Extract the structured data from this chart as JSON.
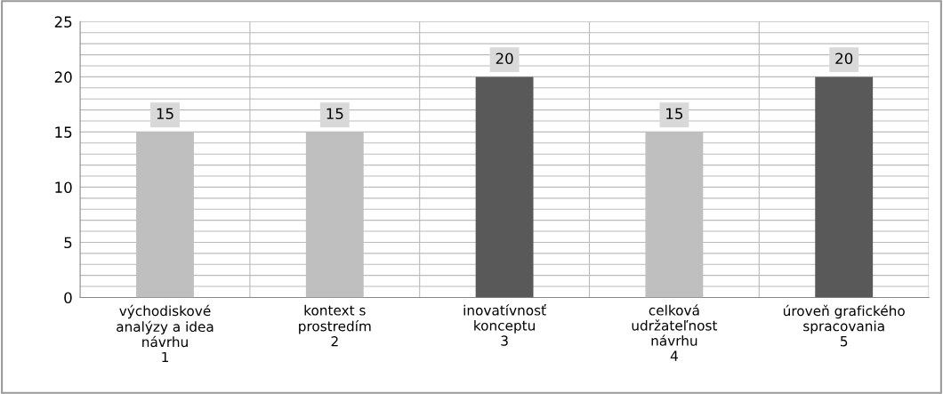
{
  "chart_data": {
    "type": "bar",
    "categories": [
      "východiskové\nanalýzy a idea\nnávrhu\n1",
      "kontext s\nprostredím\n2",
      "inovatívnosť\nkonceptu\n3",
      "celková\nudržateľnost\nnávrhu\n4",
      "úroveň grafického\nspracovania\n5"
    ],
    "values": [
      15,
      15,
      20,
      15,
      20
    ],
    "colors": [
      "#bfbfbf",
      "#bfbfbf",
      "#595959",
      "#bfbfbf",
      "#595959"
    ],
    "ylim": [
      0,
      25
    ],
    "yticks": [
      0,
      {
        "value": 1,
        "label": null
      },
      {
        "value": 2,
        "label": null
      },
      {
        "value": 3,
        "label": null
      },
      {
        "value": 4,
        "label": null
      },
      5,
      {
        "value": 6,
        "label": null
      },
      {
        "value": 7,
        "label": null
      },
      {
        "value": 8,
        "label": null
      },
      {
        "value": 9,
        "label": null
      },
      10,
      {
        "value": 11,
        "label": null
      },
      {
        "value": 12,
        "label": null
      },
      {
        "value": 13,
        "label": null
      },
      {
        "value": 14,
        "label": null
      },
      15,
      {
        "value": 16,
        "label": null
      },
      {
        "value": 17,
        "label": null
      },
      {
        "value": 18,
        "label": null
      },
      {
        "value": 19,
        "label": null
      },
      20,
      {
        "value": 21,
        "label": null
      },
      {
        "value": 22,
        "label": null
      },
      {
        "value": 23,
        "label": null
      },
      {
        "value": 24,
        "label": null
      },
      25
    ],
    "grid": true,
    "data_labels": true
  }
}
